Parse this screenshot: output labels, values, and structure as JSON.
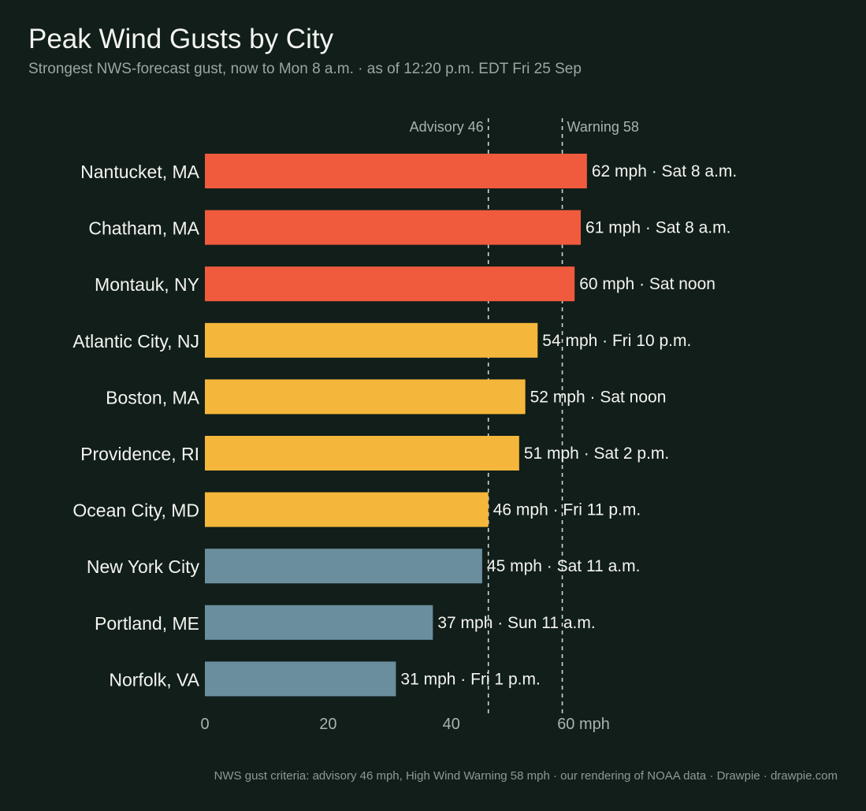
{
  "title": "Peak Wind Gusts by City",
  "subtitle": "Strongest NWS-forecast gust, now to Mon 8 a.m.  ·  as of 12:20 p.m. EDT Fri 25 Sep",
  "footnote": "NWS gust criteria: advisory 46 mph, High Wind Warning 58 mph  ·  our rendering of NOAA data  ·  Drawpie · drawpie.com",
  "colors": {
    "background": "#111e1a",
    "warning": "#f05b3d",
    "advisory": "#f5b73b",
    "below": "#6b8e9e",
    "reference_line": "#d0d6d3",
    "axis_text": "#a9b3b0",
    "label_text": "#f4f4f0"
  },
  "chart_data": {
    "type": "bar",
    "orientation": "horizontal",
    "categories": [
      "Nantucket, MA",
      "Chatham, MA",
      "Montauk, NY",
      "Atlantic City, NJ",
      "Boston, MA",
      "Providence, RI",
      "Ocean City, MD",
      "New York City",
      "Portland, ME",
      "Norfolk, VA"
    ],
    "values": [
      62,
      61,
      60,
      54,
      52,
      51,
      46,
      45,
      37,
      31
    ],
    "peak_times": [
      "Sat 8 a.m.",
      "Sat 8 a.m.",
      "Sat noon",
      "Fri 10 p.m.",
      "Sat noon",
      "Sat 2 p.m.",
      "Fri 11 p.m.",
      "Sat 11 a.m.",
      "Sun 11 a.m.",
      "Fri 1 p.m."
    ],
    "categories_color": [
      "warning",
      "warning",
      "warning",
      "advisory",
      "advisory",
      "advisory",
      "advisory",
      "below",
      "below",
      "below"
    ],
    "value_unit": "mph",
    "xlim": [
      0,
      62
    ],
    "xticks": [
      0,
      20,
      40,
      60
    ],
    "xtick_labels": [
      "0",
      "20",
      "40",
      "60 mph"
    ],
    "reference_lines": [
      {
        "value": 46,
        "label": "Advisory 46",
        "label_side": "left"
      },
      {
        "value": 58,
        "label": "Warning 58",
        "label_side": "right"
      }
    ],
    "grid": false,
    "legend": "none"
  }
}
